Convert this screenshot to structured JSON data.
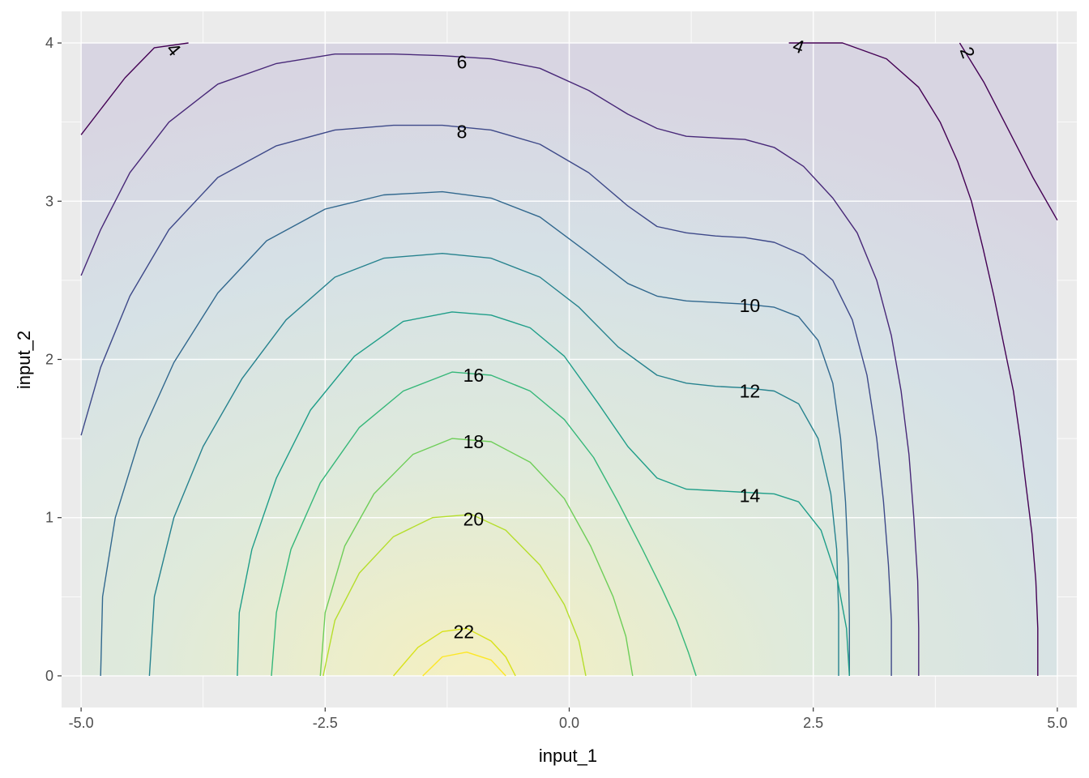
{
  "chart_data": {
    "type": "contour",
    "title": "",
    "xlabel": "input_1",
    "ylabel": "input_2",
    "xlim": [
      -5.2,
      5.2
    ],
    "ylim": [
      -0.2,
      4.2
    ],
    "grid": true,
    "x_ticks": [
      -5.0,
      -2.5,
      0.0,
      2.5,
      5.0
    ],
    "x_tick_labels": [
      "-5.0",
      "-2.5",
      "0.0",
      "2.5",
      "5.0"
    ],
    "y_ticks": [
      0,
      1,
      2,
      3,
      4
    ],
    "y_tick_labels": [
      "0",
      "1",
      "2",
      "3",
      "4"
    ],
    "colormap": [
      "#440154",
      "#3b528b",
      "#21908c",
      "#5dc863",
      "#fde725"
    ],
    "level_range": [
      2,
      24
    ],
    "contours": [
      {
        "level": 2,
        "color": "#440154",
        "lines": [
          [
            [
              4.0,
              4.0
            ],
            [
              4.25,
              3.75
            ],
            [
              4.5,
              3.45
            ],
            [
              4.75,
              3.15
            ],
            [
              5.0,
              2.88
            ]
          ],
          [
            [
              4.8,
              0.0
            ],
            [
              4.8,
              0.3
            ],
            [
              4.78,
              0.6
            ],
            [
              4.74,
              0.9
            ],
            [
              4.68,
              1.2
            ],
            [
              4.62,
              1.5
            ],
            [
              4.55,
              1.8
            ],
            [
              4.45,
              2.1
            ],
            [
              4.35,
              2.4
            ],
            [
              4.24,
              2.7
            ],
            [
              4.12,
              3.0
            ],
            [
              3.98,
              3.25
            ],
            [
              3.8,
              3.5
            ],
            [
              3.58,
              3.72
            ],
            [
              3.25,
              3.9
            ],
            [
              2.8,
              4.0
            ],
            [
              2.25,
              4.0
            ]
          ],
          [
            [
              -5.0,
              3.42
            ],
            [
              -4.8,
              3.58
            ],
            [
              -4.55,
              3.78
            ],
            [
              -4.25,
              3.97
            ],
            [
              -3.9,
              4.0
            ]
          ]
        ]
      },
      {
        "level": 4,
        "color": "#482878",
        "lines": [
          [
            [
              -5.0,
              2.53
            ],
            [
              -4.8,
              2.82
            ],
            [
              -4.5,
              3.18
            ],
            [
              -4.1,
              3.5
            ],
            [
              -3.6,
              3.74
            ],
            [
              -3.0,
              3.87
            ],
            [
              -2.4,
              3.93
            ],
            [
              -1.8,
              3.93
            ],
            [
              -1.3,
              3.92
            ],
            [
              -0.8,
              3.9
            ],
            [
              -0.3,
              3.84
            ],
            [
              0.2,
              3.7
            ],
            [
              0.6,
              3.55
            ],
            [
              0.9,
              3.46
            ],
            [
              1.2,
              3.41
            ],
            [
              1.5,
              3.4
            ],
            [
              1.8,
              3.39
            ],
            [
              2.1,
              3.34
            ],
            [
              2.4,
              3.22
            ],
            [
              2.7,
              3.02
            ],
            [
              2.95,
              2.8
            ],
            [
              3.15,
              2.5
            ],
            [
              3.3,
              2.15
            ],
            [
              3.4,
              1.8
            ],
            [
              3.48,
              1.4
            ],
            [
              3.53,
              1.0
            ],
            [
              3.57,
              0.6
            ],
            [
              3.58,
              0.3
            ],
            [
              3.58,
              0.0
            ]
          ]
        ]
      },
      {
        "level": 6,
        "color": "#3e4989",
        "lines": [
          [
            [
              -5.0,
              1.52
            ],
            [
              -4.8,
              1.95
            ],
            [
              -4.5,
              2.4
            ],
            [
              -4.1,
              2.82
            ],
            [
              -3.6,
              3.15
            ],
            [
              -3.0,
              3.35
            ],
            [
              -2.4,
              3.45
            ],
            [
              -1.8,
              3.48
            ],
            [
              -1.3,
              3.48
            ],
            [
              -0.8,
              3.45
            ],
            [
              -0.3,
              3.36
            ],
            [
              0.2,
              3.18
            ],
            [
              0.6,
              2.97
            ],
            [
              0.9,
              2.84
            ],
            [
              1.2,
              2.8
            ],
            [
              1.5,
              2.78
            ],
            [
              1.8,
              2.77
            ],
            [
              2.1,
              2.74
            ],
            [
              2.4,
              2.66
            ],
            [
              2.7,
              2.5
            ],
            [
              2.9,
              2.25
            ],
            [
              3.05,
              1.9
            ],
            [
              3.15,
              1.5
            ],
            [
              3.22,
              1.1
            ],
            [
              3.27,
              0.7
            ],
            [
              3.3,
              0.35
            ],
            [
              3.3,
              0.0
            ]
          ]
        ]
      },
      {
        "level": 8,
        "color": "#31688e",
        "lines": [
          [
            [
              -4.8,
              0.0
            ],
            [
              -4.78,
              0.5
            ],
            [
              -4.65,
              1.0
            ],
            [
              -4.4,
              1.5
            ],
            [
              -4.05,
              1.98
            ],
            [
              -3.6,
              2.42
            ],
            [
              -3.1,
              2.75
            ],
            [
              -2.5,
              2.95
            ],
            [
              -1.9,
              3.04
            ],
            [
              -1.3,
              3.06
            ],
            [
              -0.8,
              3.02
            ],
            [
              -0.3,
              2.9
            ],
            [
              0.2,
              2.67
            ],
            [
              0.6,
              2.48
            ],
            [
              0.9,
              2.4
            ],
            [
              1.2,
              2.37
            ],
            [
              1.5,
              2.36
            ],
            [
              1.8,
              2.35
            ],
            [
              2.1,
              2.33
            ],
            [
              2.35,
              2.27
            ],
            [
              2.55,
              2.12
            ],
            [
              2.7,
              1.85
            ],
            [
              2.78,
              1.5
            ],
            [
              2.83,
              1.1
            ],
            [
              2.86,
              0.7
            ],
            [
              2.87,
              0.35
            ],
            [
              2.87,
              0.0
            ]
          ]
        ]
      },
      {
        "level": 10,
        "color": "#26828e",
        "lines": [
          [
            [
              -4.3,
              0.0
            ],
            [
              -4.25,
              0.5
            ],
            [
              -4.05,
              1.0
            ],
            [
              -3.75,
              1.45
            ],
            [
              -3.35,
              1.88
            ],
            [
              -2.9,
              2.25
            ],
            [
              -2.4,
              2.52
            ],
            [
              -1.9,
              2.64
            ],
            [
              -1.3,
              2.67
            ],
            [
              -0.8,
              2.64
            ],
            [
              -0.3,
              2.52
            ],
            [
              0.1,
              2.33
            ],
            [
              0.5,
              2.08
            ],
            [
              0.9,
              1.9
            ],
            [
              1.2,
              1.85
            ],
            [
              1.5,
              1.83
            ],
            [
              1.8,
              1.82
            ],
            [
              2.1,
              1.8
            ],
            [
              2.35,
              1.72
            ],
            [
              2.55,
              1.5
            ],
            [
              2.68,
              1.15
            ],
            [
              2.74,
              0.8
            ],
            [
              2.76,
              0.4
            ],
            [
              2.76,
              0.0
            ]
          ]
        ]
      },
      {
        "level": 12,
        "color": "#1f9e89",
        "lines": [
          [
            [
              -3.4,
              0.0
            ],
            [
              -3.38,
              0.4
            ],
            [
              -3.25,
              0.8
            ],
            [
              -3.0,
              1.25
            ],
            [
              -2.65,
              1.68
            ],
            [
              -2.2,
              2.02
            ],
            [
              -1.7,
              2.24
            ],
            [
              -1.2,
              2.3
            ],
            [
              -0.8,
              2.28
            ],
            [
              -0.4,
              2.2
            ],
            [
              -0.05,
              2.02
            ],
            [
              0.3,
              1.72
            ],
            [
              0.6,
              1.45
            ],
            [
              0.9,
              1.25
            ],
            [
              1.2,
              1.18
            ],
            [
              1.5,
              1.17
            ],
            [
              1.8,
              1.16
            ],
            [
              2.1,
              1.15
            ],
            [
              2.35,
              1.1
            ],
            [
              2.58,
              0.92
            ],
            [
              2.75,
              0.6
            ],
            [
              2.84,
              0.3
            ],
            [
              2.87,
              0.0
            ]
          ]
        ]
      },
      {
        "level": 14,
        "color": "#35b779",
        "lines": [
          [
            [
              -3.05,
              0.0
            ],
            [
              -3.0,
              0.4
            ],
            [
              -2.85,
              0.8
            ],
            [
              -2.55,
              1.22
            ],
            [
              -2.15,
              1.57
            ],
            [
              -1.7,
              1.8
            ],
            [
              -1.2,
              1.92
            ],
            [
              -0.8,
              1.9
            ],
            [
              -0.4,
              1.8
            ],
            [
              -0.05,
              1.62
            ],
            [
              0.25,
              1.38
            ],
            [
              0.5,
              1.1
            ],
            [
              0.75,
              0.8
            ],
            [
              0.95,
              0.55
            ],
            [
              1.1,
              0.35
            ],
            [
              1.22,
              0.15
            ],
            [
              1.3,
              0.0
            ]
          ]
        ]
      },
      {
        "level": 16,
        "color": "#6ece58",
        "lines": [
          [
            [
              -2.55,
              0.0
            ],
            [
              -2.5,
              0.4
            ],
            [
              -2.3,
              0.82
            ],
            [
              -2.0,
              1.15
            ],
            [
              -1.6,
              1.4
            ],
            [
              -1.2,
              1.5
            ],
            [
              -0.8,
              1.48
            ],
            [
              -0.4,
              1.35
            ],
            [
              -0.05,
              1.12
            ],
            [
              0.22,
              0.82
            ],
            [
              0.45,
              0.5
            ],
            [
              0.58,
              0.25
            ],
            [
              0.65,
              0.0
            ]
          ]
        ]
      },
      {
        "level": 18,
        "color": "#b5de2b",
        "lines": [
          [
            [
              -2.52,
              0.0
            ],
            [
              -2.4,
              0.35
            ],
            [
              -2.15,
              0.65
            ],
            [
              -1.8,
              0.88
            ],
            [
              -1.4,
              1.0
            ],
            [
              -1.0,
              1.02
            ],
            [
              -0.65,
              0.92
            ],
            [
              -0.3,
              0.7
            ],
            [
              -0.05,
              0.45
            ],
            [
              0.1,
              0.22
            ],
            [
              0.17,
              0.0
            ]
          ]
        ]
      },
      {
        "level": 20,
        "color": "#d8e219",
        "lines": [
          [
            [
              -1.8,
              0.0
            ],
            [
              -1.55,
              0.18
            ],
            [
              -1.3,
              0.28
            ],
            [
              -1.05,
              0.3
            ],
            [
              -0.8,
              0.22
            ],
            [
              -0.65,
              0.12
            ],
            [
              -0.55,
              0.0
            ]
          ]
        ]
      },
      {
        "level": 22,
        "color": "#fde725",
        "lines": [
          [
            [
              -1.5,
              0.0
            ],
            [
              -1.3,
              0.12
            ],
            [
              -1.05,
              0.15
            ],
            [
              -0.8,
              0.1
            ],
            [
              -0.65,
              0.0
            ]
          ]
        ]
      }
    ],
    "contour_labels": [
      {
        "text": "4",
        "x": -4.05,
        "y": 3.96,
        "rotate": 50
      },
      {
        "text": "6",
        "x": -1.1,
        "y": 3.88,
        "rotate": 0
      },
      {
        "text": "8",
        "x": -1.1,
        "y": 3.44,
        "rotate": 0
      },
      {
        "text": "4",
        "x": 2.35,
        "y": 3.98,
        "rotate": 20
      },
      {
        "text": "2",
        "x": 4.08,
        "y": 3.94,
        "rotate": 70
      },
      {
        "text": "10",
        "x": 1.85,
        "y": 2.34,
        "rotate": 0
      },
      {
        "text": "12",
        "x": 1.85,
        "y": 1.8,
        "rotate": 0
      },
      {
        "text": "14",
        "x": 1.85,
        "y": 1.14,
        "rotate": 0
      },
      {
        "text": "16",
        "x": -0.98,
        "y": 1.9,
        "rotate": 0
      },
      {
        "text": "18",
        "x": -0.98,
        "y": 1.48,
        "rotate": 0
      },
      {
        "text": "20",
        "x": -0.98,
        "y": 0.99,
        "rotate": 0
      },
      {
        "text": "22",
        "x": -1.08,
        "y": 0.28,
        "rotate": 0
      }
    ]
  }
}
